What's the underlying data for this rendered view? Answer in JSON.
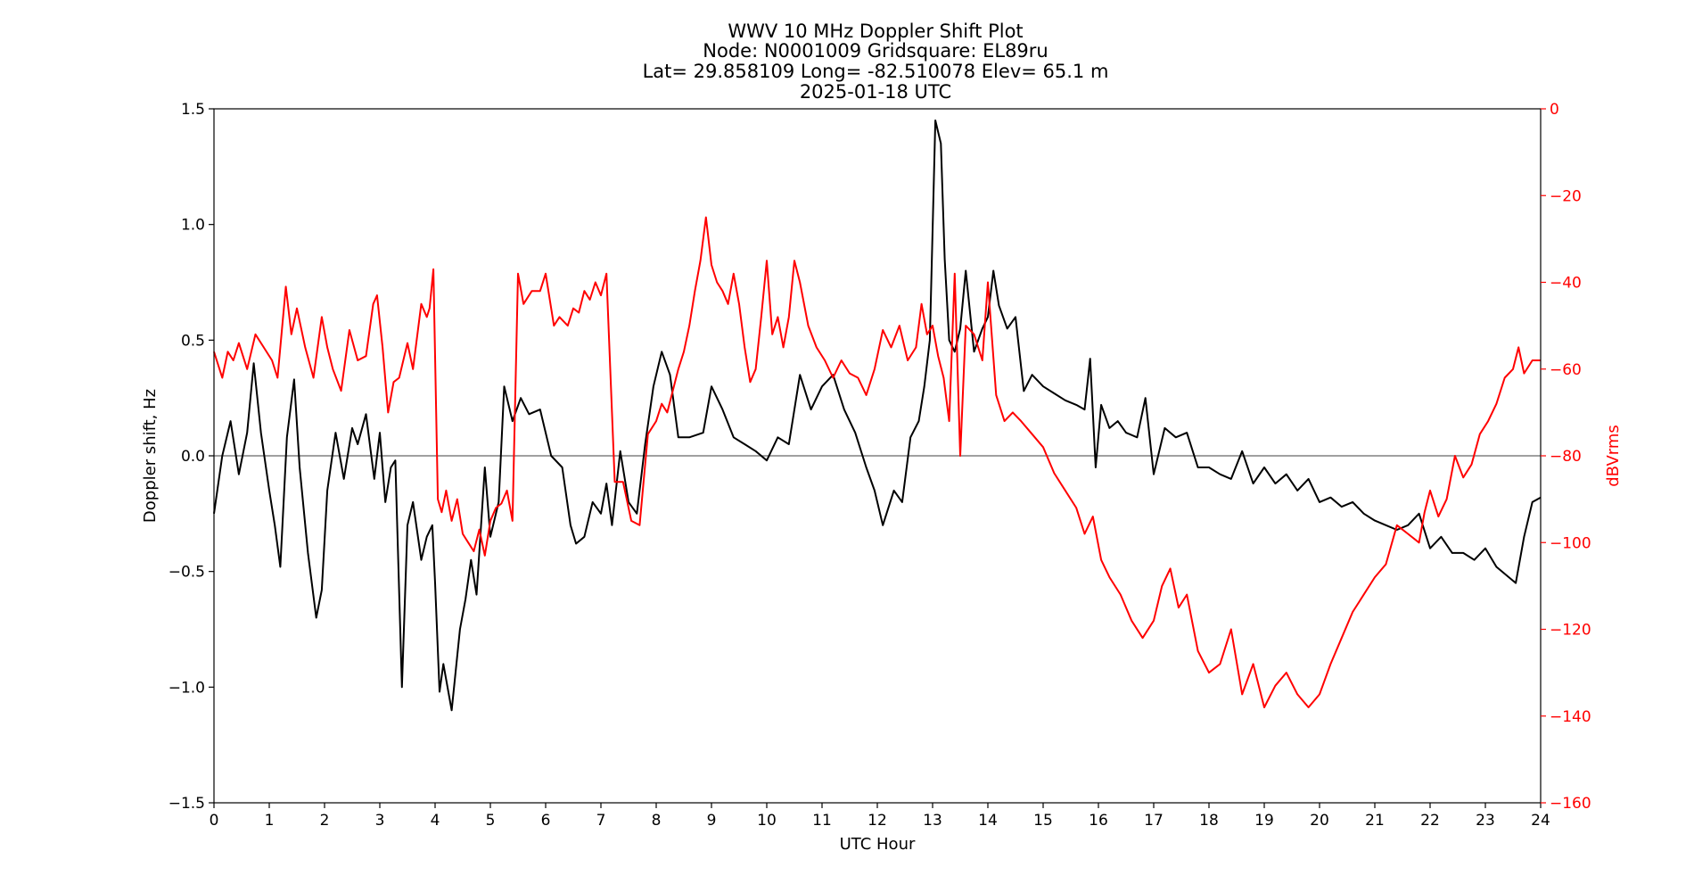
{
  "chart_data": {
    "type": "line",
    "title_lines": [
      "WWV 10 MHz Doppler Shift Plot",
      "Node:  N0001009     Gridsquare:  EL89ru",
      "Lat= 29.858109    Long= -82.510078    Elev= 65.1 m",
      "2025-01-18  UTC"
    ],
    "xlabel": "UTC Hour",
    "ylabel": "Doppler shift, Hz",
    "y2label": "dBVrms",
    "xlim": [
      0,
      24
    ],
    "ylim": [
      -1.5,
      1.5
    ],
    "y2lim": [
      -160,
      0
    ],
    "x_ticks": [
      0,
      1,
      2,
      3,
      4,
      5,
      6,
      7,
      8,
      9,
      10,
      11,
      12,
      13,
      14,
      15,
      16,
      17,
      18,
      19,
      20,
      21,
      22,
      23,
      24
    ],
    "y_ticks": [
      "1.5",
      "1.0",
      "0.5",
      "0.0",
      "−0.5",
      "−1.0",
      "−1.5"
    ],
    "y_tick_values": [
      1.5,
      1.0,
      0.5,
      0.0,
      -0.5,
      -1.0,
      -1.5
    ],
    "y2_ticks": [
      "0",
      "−20",
      "−40",
      "−60",
      "−80",
      "−100",
      "−120",
      "−140",
      "−160"
    ],
    "y2_tick_values": [
      0,
      -20,
      -40,
      -60,
      -80,
      -100,
      -120,
      -140,
      -160
    ],
    "reference_line_y": 0,
    "colors": {
      "doppler": "#000000",
      "power": "#ff0000",
      "zero_line": "#808080",
      "axis": "#000000"
    },
    "series": [
      {
        "axis": "left",
        "x": [
          0,
          0.15,
          0.3,
          0.45,
          0.6,
          0.72,
          0.85,
          1.0,
          1.1,
          1.2,
          1.32,
          1.45,
          1.55,
          1.7,
          1.85,
          1.95,
          2.05,
          2.2,
          2.35,
          2.5,
          2.6,
          2.75,
          2.9,
          3.0,
          3.1,
          3.2,
          3.28,
          3.4,
          3.5,
          3.6,
          3.75,
          3.85,
          3.95,
          4.0,
          4.08,
          4.15,
          4.3,
          4.45,
          4.55,
          4.65,
          4.75,
          4.9,
          5.0,
          5.15,
          5.25,
          5.4,
          5.55,
          5.7,
          5.9,
          6.1,
          6.3,
          6.45,
          6.55,
          6.7,
          6.85,
          7.0,
          7.1,
          7.2,
          7.35,
          7.5,
          7.65,
          7.8,
          7.95,
          8.1,
          8.25,
          8.4,
          8.6,
          8.85,
          9.0,
          9.2,
          9.4,
          9.6,
          9.8,
          10.0,
          10.2,
          10.4,
          10.6,
          10.8,
          11.0,
          11.2,
          11.4,
          11.6,
          11.8,
          11.95,
          12.1,
          12.3,
          12.45,
          12.6,
          12.75,
          12.85,
          12.95,
          13.05,
          13.15,
          13.22,
          13.3,
          13.4,
          13.5,
          13.6,
          13.75,
          13.9,
          14.0,
          14.1,
          14.2,
          14.35,
          14.5,
          14.65,
          14.8,
          15.0,
          15.2,
          15.4,
          15.6,
          15.75,
          15.85,
          15.95,
          16.05,
          16.2,
          16.35,
          16.5,
          16.7,
          16.85,
          17.0,
          17.2,
          17.4,
          17.6,
          17.8,
          18.0,
          18.2,
          18.4,
          18.6,
          18.8,
          19.0,
          19.2,
          19.4,
          19.6,
          19.8,
          20.0,
          20.2,
          20.4,
          20.6,
          20.8,
          21.0,
          21.2,
          21.4,
          21.6,
          21.8,
          22.0,
          22.2,
          22.4,
          22.6,
          22.8,
          23.0,
          23.2,
          23.4,
          23.55,
          23.7,
          23.85,
          24.0
        ],
        "y": [
          -0.25,
          0.0,
          0.15,
          -0.08,
          0.1,
          0.4,
          0.1,
          -0.15,
          -0.3,
          -0.48,
          0.08,
          0.33,
          -0.05,
          -0.42,
          -0.7,
          -0.58,
          -0.15,
          0.1,
          -0.1,
          0.12,
          0.05,
          0.18,
          -0.1,
          0.1,
          -0.2,
          -0.05,
          -0.02,
          -1.0,
          -0.3,
          -0.2,
          -0.45,
          -0.35,
          -0.3,
          -0.55,
          -1.02,
          -0.9,
          -1.1,
          -0.75,
          -0.62,
          -0.45,
          -0.6,
          -0.05,
          -0.35,
          -0.2,
          0.3,
          0.15,
          0.25,
          0.18,
          0.2,
          0.0,
          -0.05,
          -0.3,
          -0.38,
          -0.35,
          -0.2,
          -0.25,
          -0.12,
          -0.3,
          0.02,
          -0.2,
          -0.25,
          0.05,
          0.3,
          0.45,
          0.35,
          0.08,
          0.08,
          0.1,
          0.3,
          0.2,
          0.08,
          0.05,
          0.02,
          -0.02,
          0.08,
          0.05,
          0.35,
          0.2,
          0.3,
          0.35,
          0.2,
          0.1,
          -0.05,
          -0.15,
          -0.3,
          -0.15,
          -0.2,
          0.08,
          0.15,
          0.3,
          0.5,
          1.45,
          1.35,
          0.85,
          0.5,
          0.45,
          0.55,
          0.8,
          0.45,
          0.55,
          0.6,
          0.8,
          0.65,
          0.55,
          0.6,
          0.28,
          0.35,
          0.3,
          0.27,
          0.24,
          0.22,
          0.2,
          0.42,
          -0.05,
          0.22,
          0.12,
          0.15,
          0.1,
          0.08,
          0.25,
          -0.08,
          0.12,
          0.08,
          0.1,
          -0.05,
          -0.05,
          -0.08,
          -0.1,
          0.02,
          -0.12,
          -0.05,
          -0.12,
          -0.08,
          -0.15,
          -0.1,
          -0.2,
          -0.18,
          -0.22,
          -0.2,
          -0.25,
          -0.28,
          -0.3,
          -0.32,
          -0.3,
          -0.25,
          -0.4,
          -0.35,
          -0.42,
          -0.42,
          -0.45,
          -0.4,
          -0.48,
          -0.52,
          -0.55,
          -0.35,
          -0.2,
          -0.18
        ]
      },
      {
        "axis": "right",
        "x": [
          0,
          0.15,
          0.25,
          0.35,
          0.45,
          0.6,
          0.75,
          0.9,
          1.05,
          1.15,
          1.3,
          1.4,
          1.5,
          1.65,
          1.8,
          1.95,
          2.05,
          2.15,
          2.3,
          2.45,
          2.6,
          2.75,
          2.88,
          2.95,
          3.05,
          3.15,
          3.25,
          3.35,
          3.5,
          3.6,
          3.75,
          3.85,
          3.9,
          3.97,
          4.05,
          4.12,
          4.2,
          4.3,
          4.4,
          4.5,
          4.6,
          4.7,
          4.8,
          4.9,
          5.0,
          5.1,
          5.2,
          5.3,
          5.4,
          5.5,
          5.6,
          5.75,
          5.9,
          6.0,
          6.15,
          6.25,
          6.4,
          6.5,
          6.6,
          6.7,
          6.8,
          6.9,
          7.0,
          7.1,
          7.25,
          7.4,
          7.55,
          7.7,
          7.85,
          8.0,
          8.1,
          8.2,
          8.3,
          8.4,
          8.5,
          8.6,
          8.7,
          8.8,
          8.9,
          9.0,
          9.1,
          9.2,
          9.3,
          9.4,
          9.5,
          9.6,
          9.7,
          9.8,
          9.9,
          10.0,
          10.1,
          10.2,
          10.3,
          10.4,
          10.5,
          10.6,
          10.75,
          10.9,
          11.05,
          11.2,
          11.35,
          11.5,
          11.65,
          11.8,
          11.95,
          12.1,
          12.25,
          12.4,
          12.55,
          12.7,
          12.8,
          12.9,
          13.0,
          13.1,
          13.2,
          13.3,
          13.4,
          13.5,
          13.6,
          13.75,
          13.9,
          14.0,
          14.15,
          14.3,
          14.45,
          14.6,
          14.8,
          15.0,
          15.2,
          15.4,
          15.6,
          15.75,
          15.9,
          16.05,
          16.2,
          16.4,
          16.6,
          16.8,
          17.0,
          17.15,
          17.3,
          17.45,
          17.6,
          17.8,
          18.0,
          18.2,
          18.4,
          18.6,
          18.8,
          19.0,
          19.2,
          19.4,
          19.6,
          19.8,
          20.0,
          20.2,
          20.4,
          20.6,
          20.8,
          21.0,
          21.2,
          21.4,
          21.6,
          21.8,
          21.9,
          22.0,
          22.15,
          22.3,
          22.45,
          22.6,
          22.75,
          22.9,
          23.05,
          23.2,
          23.35,
          23.5,
          23.6,
          23.7,
          23.85,
          24.0
        ],
        "y": [
          -56,
          -62,
          -56,
          -58,
          -54,
          -60,
          -52,
          -55,
          -58,
          -62,
          -41,
          -52,
          -46,
          -55,
          -62,
          -48,
          -55,
          -60,
          -65,
          -51,
          -58,
          -57,
          -45,
          -43,
          -55,
          -70,
          -63,
          -62,
          -54,
          -60,
          -45,
          -48,
          -46,
          -37,
          -90,
          -93,
          -88,
          -95,
          -90,
          -98,
          -100,
          -102,
          -97,
          -103,
          -95,
          -92,
          -91,
          -88,
          -95,
          -38,
          -45,
          -42,
          -42,
          -38,
          -50,
          -48,
          -50,
          -46,
          -47,
          -42,
          -44,
          -40,
          -43,
          -38,
          -86,
          -86,
          -95,
          -96,
          -75,
          -72,
          -68,
          -70,
          -65,
          -60,
          -56,
          -50,
          -42,
          -35,
          -25,
          -36,
          -40,
          -42,
          -45,
          -38,
          -45,
          -55,
          -63,
          -60,
          -48,
          -35,
          -52,
          -48,
          -55,
          -48,
          -35,
          -40,
          -50,
          -55,
          -58,
          -62,
          -58,
          -61,
          -62,
          -66,
          -60,
          -51,
          -55,
          -50,
          -58,
          -55,
          -45,
          -52,
          -50,
          -57,
          -62,
          -72,
          -38,
          -80,
          -50,
          -52,
          -58,
          -40,
          -66,
          -72,
          -70,
          -72,
          -75,
          -78,
          -84,
          -88,
          -92,
          -98,
          -94,
          -104,
          -108,
          -112,
          -118,
          -122,
          -118,
          -110,
          -106,
          -115,
          -112,
          -125,
          -130,
          -128,
          -120,
          -135,
          -128,
          -138,
          -133,
          -130,
          -135,
          -138,
          -135,
          -128,
          -122,
          -116,
          -112,
          -108,
          -105,
          -96,
          -98,
          -100,
          -93,
          -88,
          -94,
          -90,
          -80,
          -85,
          -82,
          -75,
          -72,
          -68,
          -62,
          -60,
          -55,
          -61,
          -58,
          -58
        ]
      }
    ]
  }
}
